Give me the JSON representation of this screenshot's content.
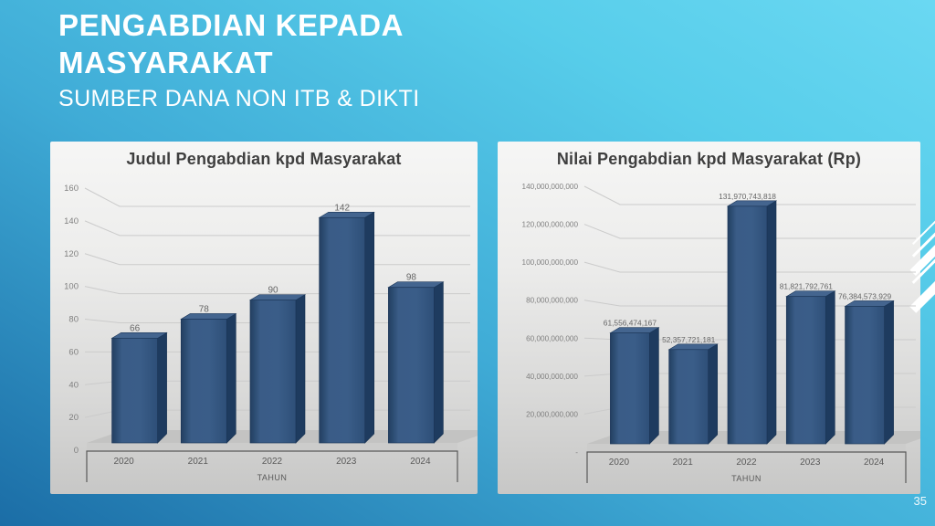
{
  "slide": {
    "title_line1": "PENGABDIAN KEPADA",
    "title_line2": "MASYARAKAT",
    "subtitle": "SUMBER DANA NON ITB & DIKTI",
    "page_number": "35",
    "colors": {
      "background_top": "#6ad8f2",
      "background_bottom": "#1b6da6",
      "bar": "#38598a",
      "bar_dark_edge": "#1e3b5f",
      "panel": "#e3e3e2",
      "text_title": "#ffffff",
      "chart_text": "#595959"
    }
  },
  "chart_data": [
    {
      "type": "bar",
      "style": "3d-column",
      "title": "Judul Pengabdian kpd Masyarakat",
      "categories": [
        "2020",
        "2021",
        "2022",
        "2023",
        "2024"
      ],
      "values": [
        66,
        78,
        90,
        142,
        98
      ],
      "data_labels": [
        "66",
        "78",
        "90",
        "142",
        "98"
      ],
      "xlabel": "TAHUN",
      "ylabel": "",
      "ylim": [
        0,
        160
      ],
      "ytick_step": 20,
      "ytick_labels": [
        "0",
        "20",
        "40",
        "60",
        "80",
        "100",
        "120",
        "140",
        "160"
      ],
      "grid": true,
      "legend": "none"
    },
    {
      "type": "bar",
      "style": "3d-column",
      "title": "Nilai Pengabdian kpd Masyarakat (Rp)",
      "categories": [
        "2020",
        "2021",
        "2022",
        "2023",
        "2024"
      ],
      "values": [
        61556474167,
        52357721181,
        131970743818,
        81821792761,
        76384573929
      ],
      "data_labels": [
        "61,556,474,167",
        "52,357,721,181",
        "131,970,743,818",
        "81,821,792,761",
        "76,384,573,929"
      ],
      "xlabel": "TAHUN",
      "ylabel": "",
      "ylim": [
        0,
        140000000000
      ],
      "ytick_step": 20000000000,
      "ytick_labels": [
        "-",
        "20,000,000,000",
        "40,000,000,000",
        "60,000,000,000",
        "80,000,000,000",
        "100,000,000,000",
        "120,000,000,000",
        "140,000,000,000"
      ],
      "grid": true,
      "legend": "none"
    }
  ]
}
